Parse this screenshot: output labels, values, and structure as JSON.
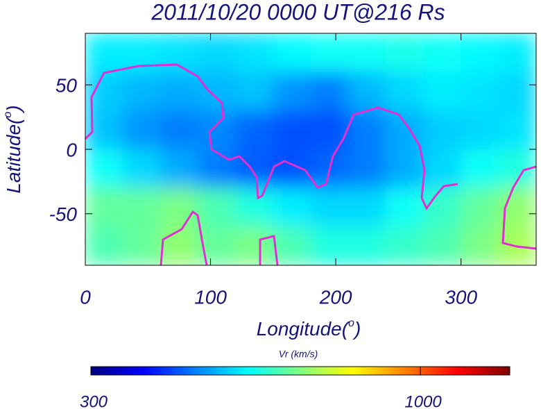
{
  "chart_data": {
    "type": "heatmap",
    "title": "2011/10/20 0000 UT@216 Rs",
    "x_label": [
      "Longitude(",
      "o",
      ")"
    ],
    "y_label": [
      "Latitude(",
      "o",
      ")"
    ],
    "xlim": [
      0,
      360
    ],
    "ylim": [
      -90,
      90
    ],
    "xticks": [
      0,
      100,
      200,
      300
    ],
    "yticks": [
      -50,
      0,
      50
    ],
    "values": [
      [
        620,
        620,
        610,
        600,
        610,
        630,
        640,
        640,
        650,
        640,
        630,
        620
      ],
      [
        590,
        570,
        560,
        570,
        580,
        540,
        520,
        570,
        600,
        620,
        610,
        600
      ],
      [
        580,
        540,
        520,
        530,
        500,
        480,
        480,
        520,
        560,
        590,
        600,
        610
      ],
      [
        640,
        600,
        560,
        520,
        490,
        480,
        500,
        520,
        560,
        600,
        640,
        660
      ],
      [
        720,
        720,
        740,
        700,
        660,
        620,
        600,
        600,
        640,
        680,
        720,
        760
      ],
      [
        700,
        720,
        760,
        720,
        740,
        700,
        660,
        660,
        680,
        700,
        740,
        780
      ]
    ],
    "colorbar": {
      "label": "Vr (km/s)",
      "lim": [
        300,
        1190
      ],
      "ticks": [
        300,
        1000
      ],
      "colors": [
        "#00007f",
        "#0000ff",
        "#0080ff",
        "#00ffff",
        "#80ff80",
        "#ffff00",
        "#ff8000",
        "#ff0000",
        "#7f0000"
      ]
    }
  }
}
